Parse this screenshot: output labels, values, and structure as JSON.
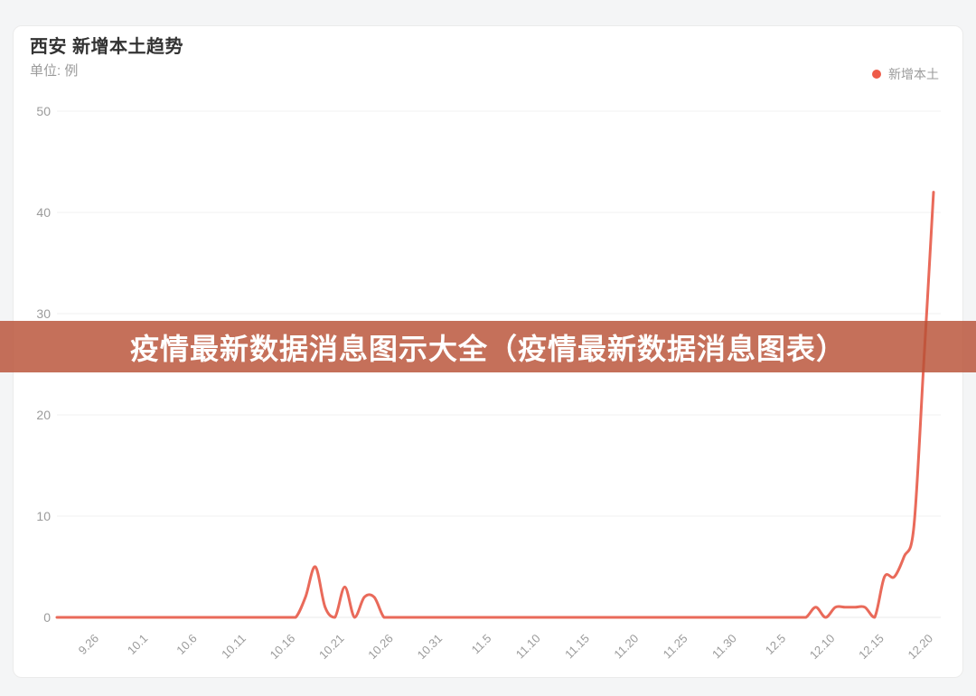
{
  "page": {
    "background": "#f4f5f6"
  },
  "card": {
    "background": "#ffffff",
    "border_color": "#ebebeb"
  },
  "header": {
    "title": "西安 新增本土趋势",
    "subtitle": "单位: 例"
  },
  "legend": {
    "label": "新增本土",
    "dot_color": "#ee5b49"
  },
  "banner": {
    "text": "疫情最新数据消息图示大全（疫情最新数据消息图表）",
    "background_rgba": "rgba(184,80,54,0.82)",
    "text_color": "#ffffff"
  },
  "chart_data": {
    "type": "line",
    "title": "西安 新增本土趋势",
    "unit_label": "单位: 例",
    "grid": true,
    "legend_position": "top-right",
    "ylim": [
      0,
      50
    ],
    "yticks": [
      0,
      10,
      20,
      30,
      40,
      50
    ],
    "x_tick_labels": [
      "9.26",
      "10.1",
      "10.6",
      "10.11",
      "10.16",
      "10.21",
      "10.26",
      "10.31",
      "11.5",
      "11.10",
      "11.15",
      "11.20",
      "11.25",
      "11.30",
      "12.5",
      "12.10",
      "12.15",
      "12.20"
    ],
    "series": [
      {
        "name": "新增本土",
        "color": "#e96a5a",
        "x": [
          "9.26",
          "9.27",
          "9.28",
          "9.29",
          "9.30",
          "10.1",
          "10.2",
          "10.3",
          "10.4",
          "10.5",
          "10.6",
          "10.7",
          "10.8",
          "10.9",
          "10.10",
          "10.11",
          "10.12",
          "10.13",
          "10.14",
          "10.15",
          "10.16",
          "10.17",
          "10.18",
          "10.19",
          "10.20",
          "10.21",
          "10.22",
          "10.23",
          "10.24",
          "10.25",
          "10.26",
          "10.27",
          "10.28",
          "10.29",
          "10.30",
          "10.31",
          "11.1",
          "11.2",
          "11.3",
          "11.4",
          "11.5",
          "11.6",
          "11.7",
          "11.8",
          "11.9",
          "11.10",
          "11.11",
          "11.12",
          "11.13",
          "11.14",
          "11.15",
          "11.16",
          "11.17",
          "11.18",
          "11.19",
          "11.20",
          "11.21",
          "11.22",
          "11.23",
          "11.24",
          "11.25",
          "11.26",
          "11.27",
          "11.28",
          "11.29",
          "11.30",
          "12.1",
          "12.2",
          "12.3",
          "12.4",
          "12.5",
          "12.6",
          "12.7",
          "12.8",
          "12.9",
          "12.10",
          "12.11",
          "12.12",
          "12.13",
          "12.14",
          "12.15",
          "12.16",
          "12.17",
          "12.18",
          "12.19",
          "12.20"
        ],
        "values": [
          0,
          0,
          0,
          0,
          0,
          0,
          0,
          0,
          0,
          0,
          0,
          0,
          0,
          0,
          0,
          0,
          0,
          0,
          0,
          0,
          0,
          2,
          5,
          1,
          0,
          3,
          0,
          2,
          2,
          0,
          0,
          0,
          0,
          0,
          0,
          0,
          0,
          0,
          0,
          0,
          0,
          0,
          0,
          0,
          0,
          0,
          0,
          0,
          0,
          0,
          0,
          0,
          0,
          0,
          0,
          0,
          0,
          0,
          0,
          0,
          0,
          0,
          0,
          0,
          0,
          0,
          0,
          0,
          0,
          0,
          0,
          0,
          0,
          1,
          0,
          1,
          1,
          1,
          1,
          0,
          4,
          4,
          6,
          9,
          25,
          42
        ]
      }
    ]
  }
}
